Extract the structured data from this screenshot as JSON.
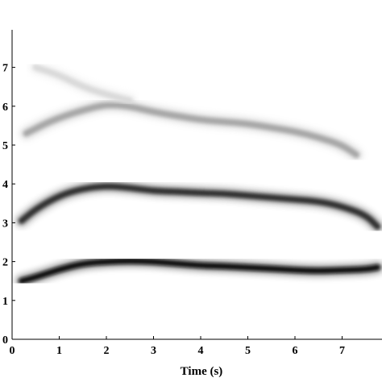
{
  "chart_data": {
    "type": "heatmap",
    "subtype": "spectrogram",
    "colormap": "grayscale (white = low, black = high)",
    "xlabel": "Time (s)",
    "ylabel": "",
    "title": "",
    "xlim": [
      0,
      7.8
    ],
    "ylim": [
      0,
      7.8
    ],
    "xticks": [
      "0",
      "1",
      "2",
      "3",
      "4",
      "5",
      "6",
      "7"
    ],
    "yticks": [
      "0",
      "1",
      "2",
      "3",
      "4",
      "5",
      "6",
      "7"
    ],
    "grid": false,
    "series": [
      {
        "intensity": 0.95,
        "width": 0.1,
        "points": [
          [
            0.2,
            1.5
          ],
          [
            0.5,
            1.6
          ],
          [
            1.0,
            1.8
          ],
          [
            1.5,
            1.95
          ],
          [
            2.0,
            2.0
          ],
          [
            2.5,
            2.02
          ],
          [
            3.0,
            2.0
          ],
          [
            3.5,
            1.95
          ],
          [
            4.0,
            1.9
          ],
          [
            4.5,
            1.88
          ],
          [
            5.0,
            1.85
          ],
          [
            5.5,
            1.82
          ],
          [
            6.0,
            1.78
          ],
          [
            6.5,
            1.76
          ],
          [
            7.0,
            1.78
          ],
          [
            7.5,
            1.8
          ],
          [
            7.75,
            1.85
          ]
        ]
      },
      {
        "intensity": 0.82,
        "width": 0.1,
        "points": [
          [
            0.2,
            3.05
          ],
          [
            0.5,
            3.35
          ],
          [
            1.0,
            3.7
          ],
          [
            1.5,
            3.88
          ],
          [
            2.0,
            3.95
          ],
          [
            2.5,
            3.9
          ],
          [
            3.0,
            3.82
          ],
          [
            3.5,
            3.8
          ],
          [
            4.0,
            3.77
          ],
          [
            4.5,
            3.75
          ],
          [
            5.0,
            3.7
          ],
          [
            5.5,
            3.65
          ],
          [
            6.0,
            3.6
          ],
          [
            6.5,
            3.55
          ],
          [
            7.0,
            3.42
          ],
          [
            7.5,
            3.2
          ],
          [
            7.75,
            2.9
          ]
        ]
      },
      {
        "intensity": 0.35,
        "width": 0.1,
        "points": [
          [
            0.3,
            5.3
          ],
          [
            0.7,
            5.55
          ],
          [
            1.0,
            5.7
          ],
          [
            1.5,
            5.9
          ],
          [
            2.0,
            6.05
          ],
          [
            2.5,
            6.0
          ],
          [
            3.0,
            5.85
          ],
          [
            3.5,
            5.75
          ],
          [
            4.0,
            5.65
          ],
          [
            4.5,
            5.6
          ],
          [
            5.0,
            5.55
          ],
          [
            5.5,
            5.45
          ],
          [
            6.0,
            5.35
          ],
          [
            6.5,
            5.2
          ],
          [
            7.0,
            5.0
          ],
          [
            7.3,
            4.75
          ]
        ]
      },
      {
        "intensity": 0.15,
        "width": 0.1,
        "points": [
          [
            0.5,
            7.0
          ],
          [
            1.0,
            6.8
          ],
          [
            1.5,
            6.5
          ],
          [
            2.0,
            6.3
          ],
          [
            2.5,
            6.15
          ]
        ]
      }
    ]
  }
}
